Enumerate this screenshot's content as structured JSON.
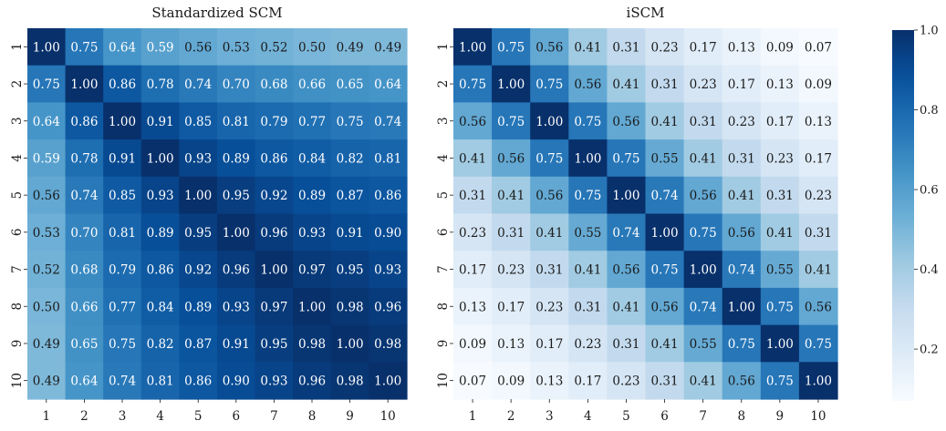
{
  "chart_data": [
    {
      "type": "heatmap",
      "title": "Standardized SCM",
      "x_labels": [
        "1",
        "2",
        "3",
        "4",
        "5",
        "6",
        "7",
        "8",
        "9",
        "10"
      ],
      "y_labels": [
        "1",
        "2",
        "3",
        "4",
        "5",
        "6",
        "7",
        "8",
        "9",
        "10"
      ],
      "values": [
        [
          "1.00",
          "0.75",
          "0.64",
          "0.59",
          "0.56",
          "0.53",
          "0.52",
          "0.50",
          "0.49",
          "0.49"
        ],
        [
          "0.75",
          "1.00",
          "0.86",
          "0.78",
          "0.74",
          "0.70",
          "0.68",
          "0.66",
          "0.65",
          "0.64"
        ],
        [
          "0.64",
          "0.86",
          "1.00",
          "0.91",
          "0.85",
          "0.81",
          "0.79",
          "0.77",
          "0.75",
          "0.74"
        ],
        [
          "0.59",
          "0.78",
          "0.91",
          "1.00",
          "0.93",
          "0.89",
          "0.86",
          "0.84",
          "0.82",
          "0.81"
        ],
        [
          "0.56",
          "0.74",
          "0.85",
          "0.93",
          "1.00",
          "0.95",
          "0.92",
          "0.89",
          "0.87",
          "0.86"
        ],
        [
          "0.53",
          "0.70",
          "0.81",
          "0.89",
          "0.95",
          "1.00",
          "0.96",
          "0.93",
          "0.91",
          "0.90"
        ],
        [
          "0.52",
          "0.68",
          "0.79",
          "0.86",
          "0.92",
          "0.96",
          "1.00",
          "0.97",
          "0.95",
          "0.93"
        ],
        [
          "0.50",
          "0.66",
          "0.77",
          "0.84",
          "0.89",
          "0.93",
          "0.97",
          "1.00",
          "0.98",
          "0.96"
        ],
        [
          "0.49",
          "0.65",
          "0.75",
          "0.82",
          "0.87",
          "0.91",
          "0.95",
          "0.98",
          "1.00",
          "0.98"
        ],
        [
          "0.49",
          "0.64",
          "0.74",
          "0.81",
          "0.86",
          "0.90",
          "0.93",
          "0.96",
          "0.98",
          "1.00"
        ]
      ]
    },
    {
      "type": "heatmap",
      "title": "iSCM",
      "x_labels": [
        "1",
        "2",
        "3",
        "4",
        "5",
        "6",
        "7",
        "8",
        "9",
        "10"
      ],
      "y_labels": [
        "1",
        "2",
        "3",
        "4",
        "5",
        "6",
        "7",
        "8",
        "9",
        "10"
      ],
      "values": [
        [
          "1.00",
          "0.75",
          "0.56",
          "0.41",
          "0.31",
          "0.23",
          "0.17",
          "0.13",
          "0.09",
          "0.07"
        ],
        [
          "0.75",
          "1.00",
          "0.75",
          "0.56",
          "0.41",
          "0.31",
          "0.23",
          "0.17",
          "0.13",
          "0.09"
        ],
        [
          "0.56",
          "0.75",
          "1.00",
          "0.75",
          "0.56",
          "0.41",
          "0.31",
          "0.23",
          "0.17",
          "0.13"
        ],
        [
          "0.41",
          "0.56",
          "0.75",
          "1.00",
          "0.75",
          "0.55",
          "0.41",
          "0.31",
          "0.23",
          "0.17"
        ],
        [
          "0.31",
          "0.41",
          "0.56",
          "0.75",
          "1.00",
          "0.74",
          "0.56",
          "0.41",
          "0.31",
          "0.23"
        ],
        [
          "0.23",
          "0.31",
          "0.41",
          "0.55",
          "0.74",
          "1.00",
          "0.75",
          "0.56",
          "0.41",
          "0.31"
        ],
        [
          "0.17",
          "0.23",
          "0.31",
          "0.41",
          "0.56",
          "0.75",
          "1.00",
          "0.74",
          "0.55",
          "0.41"
        ],
        [
          "0.13",
          "0.17",
          "0.23",
          "0.31",
          "0.41",
          "0.56",
          "0.74",
          "1.00",
          "0.75",
          "0.56"
        ],
        [
          "0.09",
          "0.13",
          "0.17",
          "0.23",
          "0.31",
          "0.41",
          "0.55",
          "0.75",
          "1.00",
          "0.75"
        ],
        [
          "0.07",
          "0.09",
          "0.13",
          "0.17",
          "0.23",
          "0.31",
          "0.41",
          "0.56",
          "0.75",
          "1.00"
        ]
      ]
    }
  ],
  "colorbar": {
    "colormap": "Blues",
    "vmin": 0.07,
    "vmax": 1.0,
    "ticks": [
      {
        "value": 1.0,
        "label": "1.0"
      },
      {
        "value": 0.8,
        "label": "0.8"
      },
      {
        "value": 0.6,
        "label": "0.6"
      },
      {
        "value": 0.4,
        "label": "0.4"
      },
      {
        "value": 0.2,
        "label": "0.2"
      }
    ]
  }
}
